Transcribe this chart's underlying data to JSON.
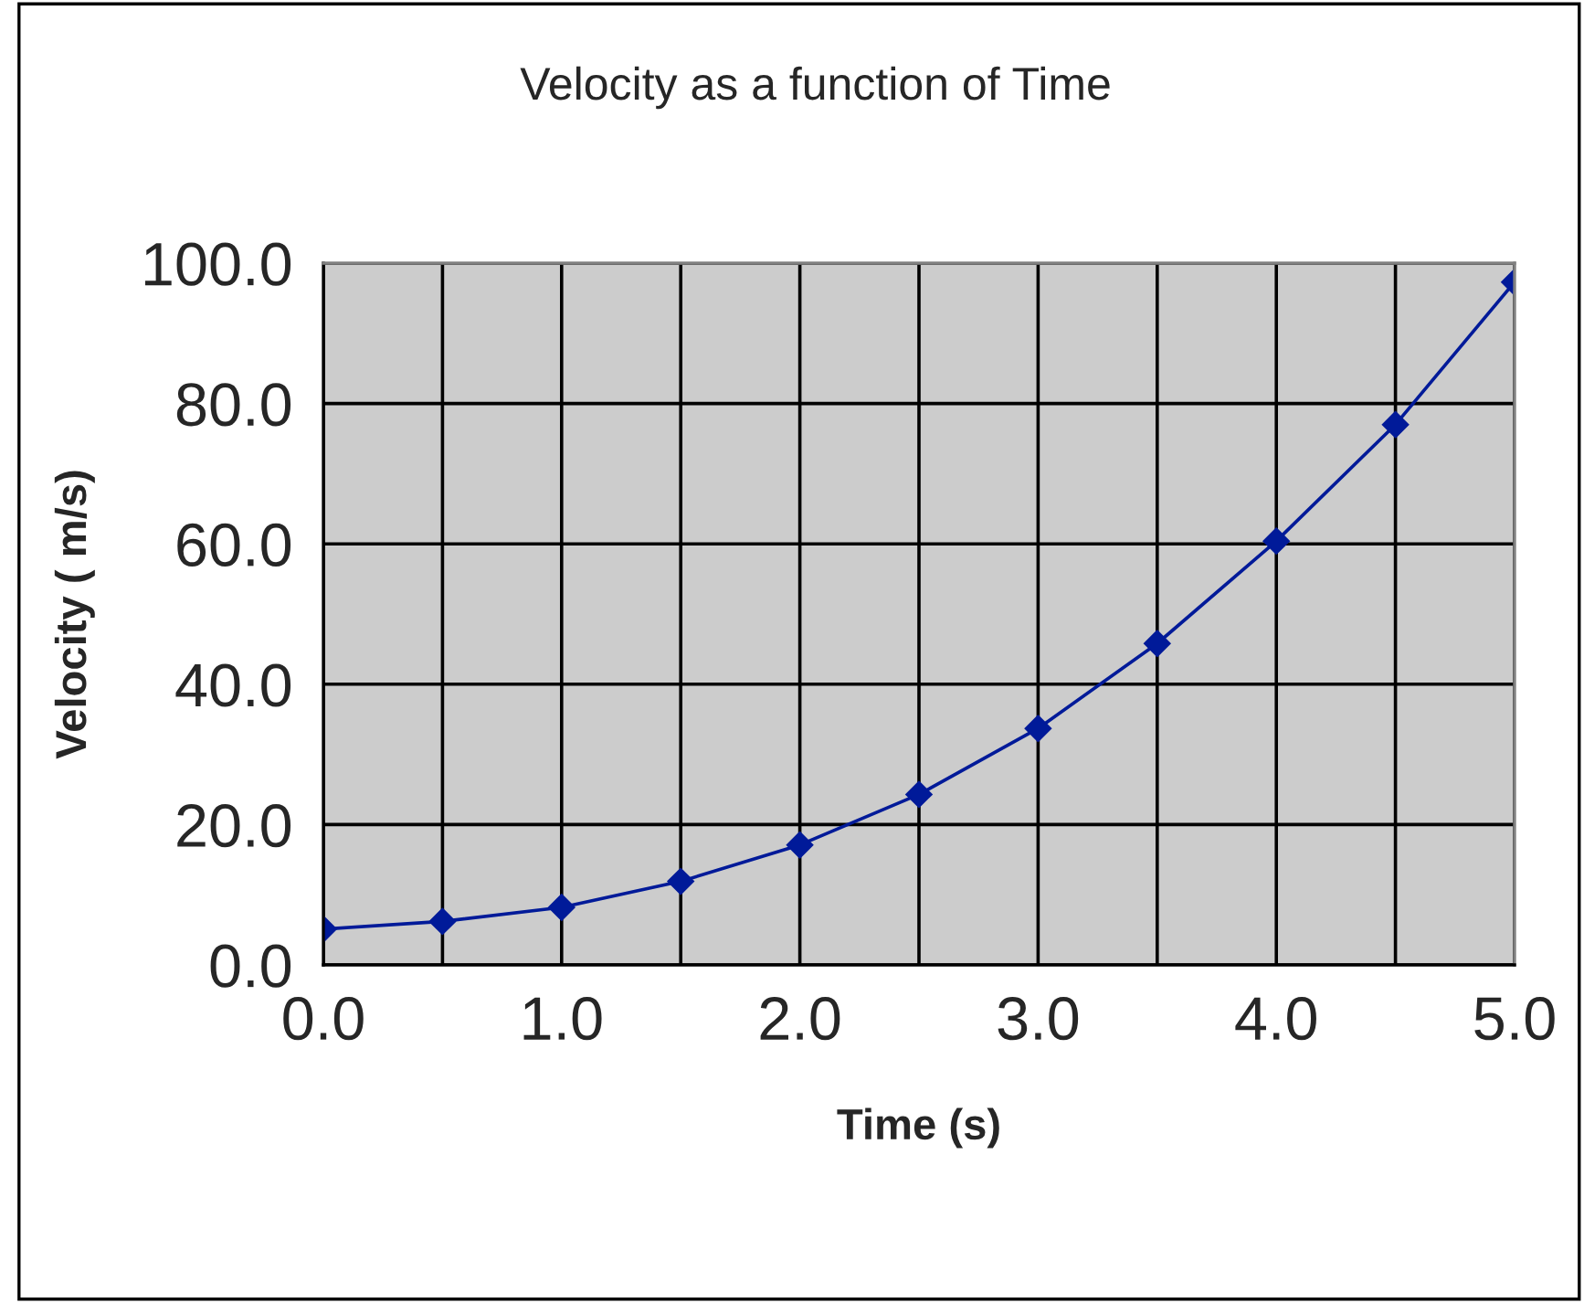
{
  "chart_data": {
    "type": "line",
    "title": "Velocity as a function of Time",
    "xlabel": "Time (s)",
    "ylabel": "Velocity ( m/s)",
    "x": [
      0.0,
      0.5,
      1.0,
      1.5,
      2.0,
      2.5,
      3.0,
      3.5,
      4.0,
      4.5,
      5.0
    ],
    "series": [
      {
        "color": "#001a99",
        "values": [
          5.1,
          6.2,
          8.2,
          11.9,
          17.1,
          24.3,
          33.7,
          45.8,
          60.4,
          77.0,
          97.3
        ]
      }
    ],
    "xlim": [
      0,
      5
    ],
    "ylim": [
      0,
      100
    ],
    "xticks": [
      {
        "value": 0,
        "label": "0.0"
      },
      {
        "value": 0.5,
        "label": null
      },
      {
        "value": 1,
        "label": "1.0"
      },
      {
        "value": 1.5,
        "label": null
      },
      {
        "value": 2,
        "label": "2.0"
      },
      {
        "value": 2.5,
        "label": null
      },
      {
        "value": 3,
        "label": "3.0"
      },
      {
        "value": 3.5,
        "label": null
      },
      {
        "value": 4,
        "label": "4.0"
      },
      {
        "value": 4.5,
        "label": null
      },
      {
        "value": 5,
        "label": "5.0"
      }
    ],
    "yticks": [
      {
        "value": 0,
        "label": "0.0"
      },
      {
        "value": 20,
        "label": "20.0"
      },
      {
        "value": 40,
        "label": "40.0"
      },
      {
        "value": 60,
        "label": "60.0"
      },
      {
        "value": 80,
        "label": "80.0"
      },
      {
        "value": 100,
        "label": "100.0"
      }
    ],
    "grid": true,
    "marker": "diamond",
    "line_style": "solid"
  }
}
